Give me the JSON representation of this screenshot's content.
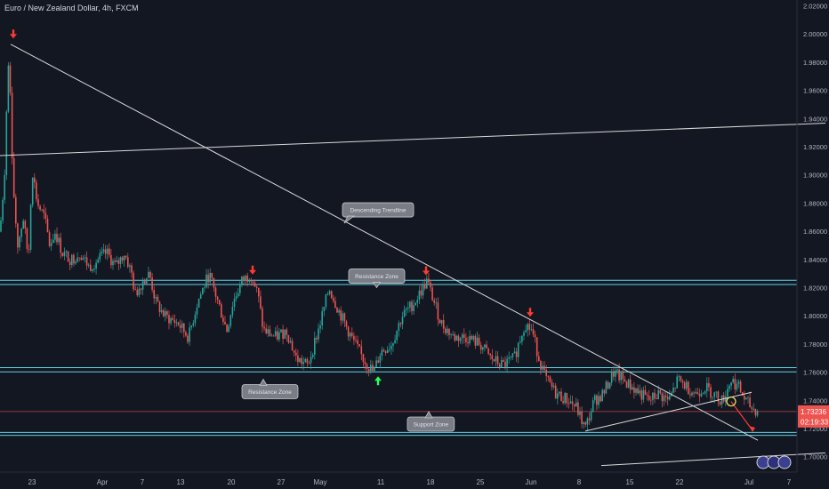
{
  "header": {
    "title": "Euro / New Zealand Dollar, 4h, FXCM"
  },
  "colors": {
    "background": "#131722",
    "up": "#26a69a",
    "down": "#ef5350",
    "zone_line": "#5dd3e6",
    "trendline": "#d9d9d9",
    "price_line": "#ef5350",
    "marker_red": "#ff3b30",
    "marker_green": "#26ff5a",
    "callout_fill": "#7a7d85"
  },
  "chart_data": {
    "type": "candlestick",
    "title": "Euro / New Zealand Dollar, 4h, FXCM",
    "ylim": [
      1.69,
      2.02
    ],
    "yticks": [
      "2.02000",
      "2.00000",
      "1.98000",
      "1.96000",
      "1.94000",
      "1.92000",
      "1.90000",
      "1.88000",
      "1.86000",
      "1.84000",
      "1.82000",
      "1.80000",
      "1.78000",
      "1.76000",
      "1.74000",
      "1.72000",
      "1.70000"
    ],
    "xticks": [
      "23",
      "Apr",
      "7",
      "13",
      "20",
      "27",
      "May",
      "11",
      "18",
      "25",
      "Jun",
      "8",
      "15",
      "22",
      "Jul",
      "7"
    ],
    "price_path": [
      [
        0,
        1.86
      ],
      [
        5,
        1.9
      ],
      [
        8,
        1.96
      ],
      [
        10,
        1.99
      ],
      [
        13,
        1.93
      ],
      [
        16,
        1.88
      ],
      [
        20,
        1.85
      ],
      [
        26,
        1.87
      ],
      [
        32,
        1.84
      ],
      [
        36,
        1.905
      ],
      [
        42,
        1.88
      ],
      [
        50,
        1.87
      ],
      [
        56,
        1.85
      ],
      [
        62,
        1.86
      ],
      [
        70,
        1.845
      ],
      [
        80,
        1.84
      ],
      [
        90,
        1.845
      ],
      [
        100,
        1.835
      ],
      [
        110,
        1.84
      ],
      [
        120,
        1.845
      ],
      [
        130,
        1.835
      ],
      [
        140,
        1.845
      ],
      [
        148,
        1.83
      ],
      [
        152,
        1.815
      ],
      [
        160,
        1.825
      ],
      [
        168,
        1.83
      ],
      [
        175,
        1.81
      ],
      [
        185,
        1.8
      ],
      [
        200,
        1.795
      ],
      [
        212,
        1.785
      ],
      [
        222,
        1.81
      ],
      [
        235,
        1.83
      ],
      [
        245,
        1.81
      ],
      [
        255,
        1.79
      ],
      [
        262,
        1.81
      ],
      [
        272,
        1.825
      ],
      [
        282,
        1.83
      ],
      [
        290,
        1.815
      ],
      [
        296,
        1.79
      ],
      [
        310,
        1.785
      ],
      [
        322,
        1.79
      ],
      [
        333,
        1.77
      ],
      [
        346,
        1.765
      ],
      [
        360,
        1.795
      ],
      [
        370,
        1.82
      ],
      [
        380,
        1.805
      ],
      [
        395,
        1.785
      ],
      [
        408,
        1.77
      ],
      [
        420,
        1.76
      ],
      [
        428,
        1.775
      ],
      [
        440,
        1.78
      ],
      [
        452,
        1.8
      ],
      [
        466,
        1.81
      ],
      [
        480,
        1.825
      ],
      [
        488,
        1.81
      ],
      [
        496,
        1.795
      ],
      [
        510,
        1.785
      ],
      [
        525,
        1.785
      ],
      [
        540,
        1.78
      ],
      [
        552,
        1.77
      ],
      [
        565,
        1.765
      ],
      [
        578,
        1.77
      ],
      [
        590,
        1.795
      ],
      [
        598,
        1.79
      ],
      [
        606,
        1.77
      ],
      [
        614,
        1.755
      ],
      [
        625,
        1.745
      ],
      [
        640,
        1.74
      ],
      [
        648,
        1.735
      ],
      [
        658,
        1.72
      ],
      [
        668,
        1.74
      ],
      [
        678,
        1.745
      ],
      [
        690,
        1.76
      ],
      [
        700,
        1.755
      ],
      [
        710,
        1.75
      ],
      [
        720,
        1.745
      ],
      [
        730,
        1.74
      ],
      [
        740,
        1.745
      ],
      [
        752,
        1.74
      ],
      [
        762,
        1.755
      ],
      [
        772,
        1.75
      ],
      [
        782,
        1.745
      ],
      [
        792,
        1.75
      ],
      [
        802,
        1.745
      ],
      [
        812,
        1.74
      ],
      [
        822,
        1.755
      ],
      [
        830,
        1.75
      ],
      [
        838,
        1.74
      ],
      [
        845,
        1.735
      ],
      [
        852,
        1.7325
      ]
    ],
    "horizontal_levels": [
      1.8255,
      1.8225,
      1.7635,
      1.7605,
      1.7175,
      1.7155
    ],
    "trendlines": [
      {
        "from": [
          12,
          1.993
        ],
        "to": [
          852,
          1.712
        ]
      },
      {
        "from": [
          0,
          1.914
        ],
        "to": [
          928,
          1.937
        ]
      },
      {
        "from": [
          658,
          1.7185
        ],
        "to": [
          845,
          1.746
        ]
      },
      {
        "from": [
          676,
          1.694
        ],
        "to": [
          928,
          1.703
        ]
      }
    ],
    "current_price": "1.73236",
    "countdown": "02:19:33",
    "annotations": [
      {
        "label": "Descending Trendline",
        "x": 385,
        "y": 1.8805
      },
      {
        "label": "Resistance Zone",
        "x": 392,
        "y": 1.8335
      },
      {
        "label": "Resistance Zone",
        "x": 272,
        "y": 1.7515
      },
      {
        "label": "Support Zone",
        "x": 458,
        "y": 1.7285
      }
    ],
    "arrows": [
      {
        "dir": "down",
        "color": "red",
        "x": 15,
        "y": 1.999
      },
      {
        "dir": "down",
        "color": "red",
        "x": 284,
        "y": 1.8315
      },
      {
        "dir": "down",
        "color": "red",
        "x": 479,
        "y": 1.831
      },
      {
        "dir": "down",
        "color": "red",
        "x": 596,
        "y": 1.8015
      },
      {
        "dir": "up",
        "color": "green",
        "x": 425,
        "y": 1.7555
      }
    ],
    "projection": {
      "from": [
        822,
        1.7395
      ],
      "to": [
        846,
        1.719
      ]
    },
    "circle_marker": {
      "x": 822,
      "y": 1.7395
    },
    "grid": false,
    "legend": "none"
  }
}
